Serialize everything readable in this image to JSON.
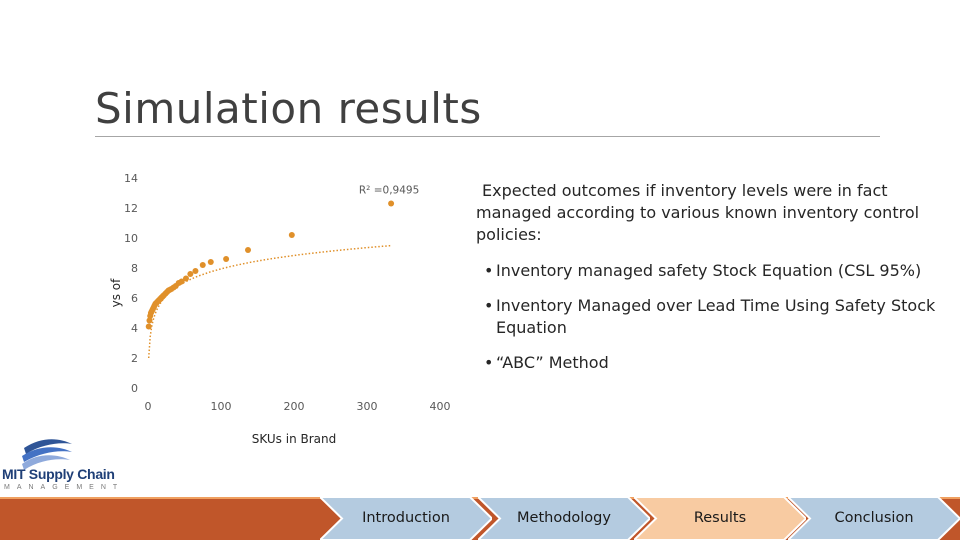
{
  "slide": {
    "title": "Simulation results",
    "intro": "Expected outcomes if inventory levels were in fact managed according to various known inventory control policies:",
    "bullets": [
      "Inventory managed safety Stock Equation (CSL 95%)",
      "Inventory Managed over Lead Time Using Safety Stock Equation",
      "“ABC” Method"
    ]
  },
  "logo": {
    "name": "MIT Supply Chain",
    "subtitle": "MANAGEMENT"
  },
  "nav": {
    "items": [
      {
        "label": "Introduction",
        "active": false
      },
      {
        "label": "Methodology",
        "active": false
      },
      {
        "label": "Results",
        "active": true
      },
      {
        "label": "Conclusion",
        "active": false
      }
    ],
    "colors": {
      "inactive": "#b4cbe0",
      "active": "#f8cba2",
      "border": "#ffffff"
    }
  },
  "chart_data": {
    "type": "scatter",
    "xlabel": "SKUs in Brand",
    "ylabel": "ys of",
    "xlim": [
      0,
      400
    ],
    "ylim": [
      0,
      14
    ],
    "xticks": [
      0,
      100,
      200,
      300,
      400
    ],
    "yticks": [
      0,
      2,
      4,
      6,
      8,
      10,
      12,
      14
    ],
    "annotation": "R² =0,9495",
    "trendline": "logarithmic",
    "grid": false,
    "color": "#e0902a",
    "points": [
      [
        1,
        4.1
      ],
      [
        2,
        4.5
      ],
      [
        3,
        4.8
      ],
      [
        4,
        5.0
      ],
      [
        5,
        5.1
      ],
      [
        6,
        5.2
      ],
      [
        7,
        5.3
      ],
      [
        8,
        5.4
      ],
      [
        9,
        5.5
      ],
      [
        10,
        5.6
      ],
      [
        11,
        5.65
      ],
      [
        12,
        5.7
      ],
      [
        13,
        5.75
      ],
      [
        14,
        5.8
      ],
      [
        15,
        5.85
      ],
      [
        16,
        5.9
      ],
      [
        17,
        5.95
      ],
      [
        18,
        6.0
      ],
      [
        19,
        6.05
      ],
      [
        20,
        6.1
      ],
      [
        21,
        6.15
      ],
      [
        22,
        6.2
      ],
      [
        24,
        6.3
      ],
      [
        26,
        6.4
      ],
      [
        28,
        6.5
      ],
      [
        30,
        6.55
      ],
      [
        32,
        6.6
      ],
      [
        35,
        6.7
      ],
      [
        38,
        6.8
      ],
      [
        42,
        7.0
      ],
      [
        46,
        7.1
      ],
      [
        52,
        7.3
      ],
      [
        58,
        7.6
      ],
      [
        65,
        7.8
      ],
      [
        75,
        8.2
      ],
      [
        86,
        8.4
      ],
      [
        107,
        8.6
      ],
      [
        137,
        9.2
      ],
      [
        197,
        10.2
      ],
      [
        333,
        12.3
      ]
    ],
    "trend_coeffs": {
      "a": 2.0,
      "b": 1.29
    }
  }
}
